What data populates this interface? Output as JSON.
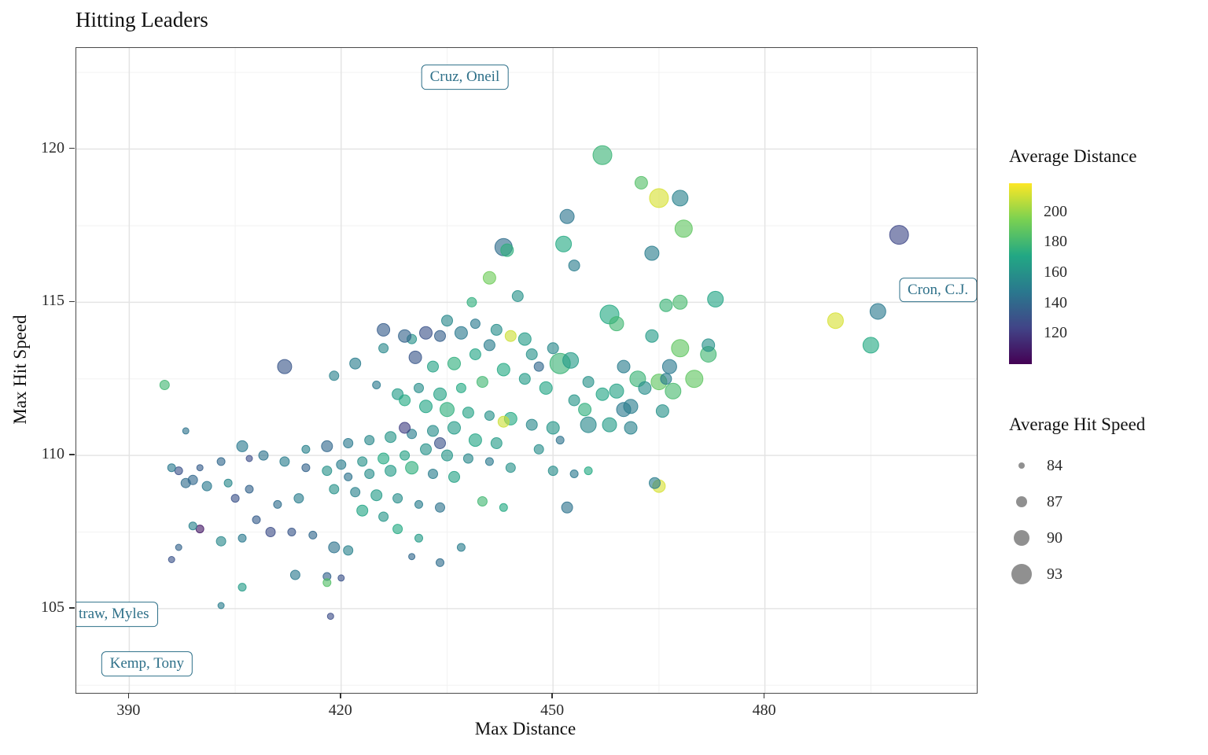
{
  "chart_data": {
    "type": "scatter",
    "title": "Hitting Leaders",
    "xlabel": "Max Distance",
    "ylabel": "Max Hit Speed",
    "x_ticks": [
      390,
      420,
      450,
      480
    ],
    "y_ticks": [
      105,
      110,
      115,
      120
    ],
    "x_range": [
      382.5,
      510
    ],
    "y_range": [
      102.25,
      123.3
    ],
    "grid": "major+minor",
    "legend_position": "right",
    "color_legend": {
      "title": "Average Distance",
      "ticks": [
        200,
        180,
        160,
        140,
        120
      ],
      "domain": [
        100,
        219
      ],
      "palette": [
        "#440154",
        "#414487",
        "#2a788e",
        "#22a884",
        "#7ad151",
        "#fde725"
      ]
    },
    "size_legend": {
      "title": "Average Hit Speed",
      "ticks": [
        84,
        87,
        90,
        93
      ]
    },
    "annotations": [
      {
        "text": "Cruz, Oneil",
        "x": 437.5,
        "y": 122.35
      },
      {
        "text": "Cron, C.J.",
        "x": 504.5,
        "y": 115.4
      },
      {
        "text": "traw, Myles",
        "x": 385.8,
        "y": 104.82,
        "clip": "left"
      },
      {
        "text": "Kemp, Tony",
        "x": 392.5,
        "y": 103.2
      }
    ],
    "series_encoding": {
      "x": "Max Distance",
      "y": "Max Hit Speed",
      "color": "Average Distance",
      "size": "Average Hit Speed",
      "point_fields": [
        "max_distance",
        "max_hit_speed",
        "avg_distance",
        "avg_hit_speed"
      ]
    },
    "points": [
      [
        457,
        119.8,
        178,
        92
      ],
      [
        462.5,
        118.9,
        185,
        88
      ],
      [
        465,
        118.4,
        212,
        92
      ],
      [
        468,
        118.4,
        152,
        90
      ],
      [
        468.5,
        117.4,
        188,
        91
      ],
      [
        499,
        117.2,
        126,
        92
      ],
      [
        452,
        117.8,
        146,
        89
      ],
      [
        443,
        116.8,
        142,
        91
      ],
      [
        443.5,
        116.7,
        175,
        88
      ],
      [
        451.5,
        116.9,
        172,
        90
      ],
      [
        464,
        116.6,
        150,
        89
      ],
      [
        453,
        116.2,
        150,
        87
      ],
      [
        441,
        115.8,
        192,
        88
      ],
      [
        473,
        115.1,
        170,
        90
      ],
      [
        496,
        114.7,
        148,
        90
      ],
      [
        490,
        114.4,
        212,
        90
      ],
      [
        495,
        113.6,
        172,
        90
      ],
      [
        468,
        115,
        182,
        89
      ],
      [
        445,
        115.2,
        160,
        87
      ],
      [
        438.5,
        115,
        175,
        86
      ],
      [
        458,
        114.6,
        172,
        92
      ],
      [
        459,
        114.3,
        180,
        89
      ],
      [
        464,
        113.9,
        165,
        88
      ],
      [
        468,
        113.5,
        188,
        91
      ],
      [
        444,
        113.9,
        210,
        87
      ],
      [
        460,
        112.9,
        150,
        88
      ],
      [
        451,
        113,
        178,
        93
      ],
      [
        452.5,
        113.1,
        165,
        90
      ],
      [
        447,
        113.3,
        160,
        87
      ],
      [
        441,
        113.6,
        150,
        87
      ],
      [
        437,
        114,
        148,
        88
      ],
      [
        434,
        113.9,
        136,
        87
      ],
      [
        430,
        113.8,
        160,
        86
      ],
      [
        426,
        113.5,
        155,
        86
      ],
      [
        426,
        114.1,
        135,
        88
      ],
      [
        439,
        113.3,
        170,
        87
      ],
      [
        436,
        113,
        175,
        88
      ],
      [
        433,
        112.9,
        168,
        87
      ],
      [
        412,
        112.9,
        132,
        89
      ],
      [
        422,
        113,
        150,
        87
      ],
      [
        419,
        112.6,
        152,
        86
      ],
      [
        443,
        112.8,
        172,
        88
      ],
      [
        446,
        112.5,
        165,
        87
      ],
      [
        449,
        112.2,
        170,
        88
      ],
      [
        455,
        112.4,
        160,
        87
      ],
      [
        462,
        112.5,
        178,
        90
      ],
      [
        465,
        112.4,
        188,
        90
      ],
      [
        457,
        112,
        170,
        88
      ],
      [
        453,
        111.8,
        162,
        87
      ],
      [
        460,
        111.5,
        148,
        89
      ],
      [
        466,
        112.5,
        150,
        87
      ],
      [
        467,
        112.1,
        182,
        90
      ],
      [
        440,
        112.4,
        180,
        87
      ],
      [
        437,
        112.2,
        172,
        86
      ],
      [
        434,
        112,
        168,
        88
      ],
      [
        431,
        112.2,
        158,
        86
      ],
      [
        428,
        112,
        165,
        87
      ],
      [
        425,
        112.3,
        148,
        85
      ],
      [
        429,
        111.8,
        172,
        87
      ],
      [
        432,
        111.6,
        170,
        88
      ],
      [
        435,
        111.5,
        175,
        89
      ],
      [
        438,
        111.4,
        168,
        87
      ],
      [
        441,
        111.3,
        160,
        86
      ],
      [
        444,
        111.2,
        172,
        88
      ],
      [
        447,
        111,
        155,
        87
      ],
      [
        450,
        110.9,
        162,
        88
      ],
      [
        443,
        111.1,
        210,
        87
      ],
      [
        436,
        110.9,
        165,
        88
      ],
      [
        433,
        110.8,
        158,
        87
      ],
      [
        430,
        110.7,
        150,
        86
      ],
      [
        427,
        110.6,
        162,
        87
      ],
      [
        424,
        110.5,
        155,
        86
      ],
      [
        421,
        110.4,
        148,
        86
      ],
      [
        418,
        110.3,
        140,
        87
      ],
      [
        415,
        110.2,
        152,
        85
      ],
      [
        439,
        110.5,
        170,
        88
      ],
      [
        442,
        110.4,
        165,
        87
      ],
      [
        448,
        110.2,
        158,
        86
      ],
      [
        451,
        110.5,
        145,
        85
      ],
      [
        455,
        111,
        155,
        90
      ],
      [
        454.5,
        111.5,
        175,
        88
      ],
      [
        461,
        111.6,
        150,
        89
      ],
      [
        463,
        112.2,
        158,
        88
      ],
      [
        465.5,
        111.45,
        160,
        88
      ],
      [
        432,
        110.2,
        160,
        87
      ],
      [
        429,
        110,
        168,
        86
      ],
      [
        426,
        109.9,
        172,
        87
      ],
      [
        423,
        109.8,
        160,
        86
      ],
      [
        420,
        109.7,
        150,
        86
      ],
      [
        435,
        110,
        162,
        87
      ],
      [
        438,
        109.9,
        155,
        86
      ],
      [
        441,
        109.8,
        148,
        85
      ],
      [
        444,
        109.6,
        160,
        86
      ],
      [
        430,
        109.6,
        175,
        88
      ],
      [
        427,
        109.5,
        165,
        87
      ],
      [
        424,
        109.4,
        158,
        86
      ],
      [
        433,
        109.4,
        150,
        86
      ],
      [
        436,
        109.3,
        168,
        87
      ],
      [
        421,
        109.3,
        145,
        85
      ],
      [
        418,
        109.5,
        160,
        86
      ],
      [
        415,
        109.6,
        138,
        85
      ],
      [
        412,
        109.8,
        150,
        86
      ],
      [
        409,
        110,
        145,
        86
      ],
      [
        406,
        110.3,
        148,
        87
      ],
      [
        403,
        109.8,
        140,
        85
      ],
      [
        400,
        109.6,
        135,
        84
      ],
      [
        397,
        109.5,
        130,
        85
      ],
      [
        398,
        109.1,
        142,
        86
      ],
      [
        401,
        109,
        148,
        86
      ],
      [
        404,
        109.1,
        155,
        85
      ],
      [
        407,
        108.9,
        138,
        85
      ],
      [
        419,
        108.9,
        160,
        86
      ],
      [
        422,
        108.8,
        152,
        86
      ],
      [
        425,
        108.7,
        165,
        87
      ],
      [
        428,
        108.6,
        158,
        86
      ],
      [
        431,
        108.4,
        150,
        85
      ],
      [
        434,
        108.3,
        145,
        86
      ],
      [
        423,
        108.2,
        170,
        87
      ],
      [
        426,
        108,
        162,
        86
      ],
      [
        440,
        108.5,
        180,
        86
      ],
      [
        443,
        108.3,
        172,
        85
      ],
      [
        452,
        108.3,
        145,
        87
      ],
      [
        450,
        109.5,
        158,
        86
      ],
      [
        453,
        109.4,
        148,
        85
      ],
      [
        465,
        109,
        212,
        88
      ],
      [
        464.4,
        109.1,
        150,
        87
      ],
      [
        458,
        111,
        165,
        89
      ],
      [
        414,
        108.6,
        150,
        86
      ],
      [
        411,
        108.4,
        142,
        85
      ],
      [
        408,
        107.9,
        135,
        85
      ],
      [
        410,
        107.5,
        128,
        86
      ],
      [
        413,
        107.5,
        132,
        85
      ],
      [
        416,
        107.4,
        140,
        85
      ],
      [
        400,
        107.6,
        108,
        85
      ],
      [
        399,
        107.7,
        152,
        85
      ],
      [
        403,
        107.2,
        155,
        86
      ],
      [
        406,
        107.3,
        148,
        85
      ],
      [
        397,
        107,
        138,
        84
      ],
      [
        419,
        107,
        145,
        87
      ],
      [
        421,
        106.9,
        152,
        86
      ],
      [
        430,
        106.7,
        140,
        84
      ],
      [
        434,
        106.5,
        142,
        85
      ],
      [
        420,
        106,
        130,
        84
      ],
      [
        418,
        106.05,
        138,
        85
      ],
      [
        413.5,
        106.1,
        148,
        86
      ],
      [
        406,
        105.7,
        165,
        85
      ],
      [
        418,
        105.85,
        185,
        85
      ],
      [
        403,
        105.1,
        150,
        84
      ],
      [
        418.5,
        104.75,
        128,
        84
      ],
      [
        396,
        106.6,
        130,
        84
      ],
      [
        395,
        112.3,
        180,
        86
      ],
      [
        398,
        110.8,
        145,
        84
      ],
      [
        396,
        109.6,
        148,
        85
      ],
      [
        399,
        109.2,
        140,
        86
      ],
      [
        428,
        107.6,
        172,
        86
      ],
      [
        431,
        107.3,
        165,
        85
      ],
      [
        437,
        107,
        150,
        85
      ],
      [
        455,
        109.5,
        172,
        85
      ],
      [
        470,
        112.5,
        188,
        91
      ],
      [
        472,
        113.3,
        180,
        90
      ],
      [
        466,
        114.9,
        178,
        88
      ],
      [
        448,
        112.9,
        140,
        86
      ],
      [
        450,
        113.5,
        155,
        87
      ],
      [
        446,
        113.8,
        165,
        88
      ],
      [
        442,
        114.1,
        158,
        87
      ],
      [
        439,
        114.3,
        148,
        86
      ],
      [
        435,
        114.4,
        155,
        87
      ],
      [
        432,
        114,
        130,
        88
      ],
      [
        429,
        113.9,
        138,
        88
      ],
      [
        461,
        110.9,
        152,
        88
      ],
      [
        459,
        112.1,
        168,
        89
      ],
      [
        430.5,
        113.2,
        132,
        88
      ],
      [
        466.5,
        112.9,
        148,
        89
      ],
      [
        472,
        113.6,
        160,
        88
      ],
      [
        429,
        110.9,
        122,
        87
      ],
      [
        434,
        110.4,
        130,
        87
      ],
      [
        405,
        108.6,
        130,
        85
      ],
      [
        407,
        109.9,
        128,
        84
      ]
    ]
  },
  "colors": {
    "grid_major": "#e4e4e4",
    "grid_minor": "#f2f2f2",
    "panel_border": "#4a4a4a",
    "axis_text": "#2b2b2b",
    "annotation": "#2e7089",
    "legend_dot": "#7c7c7c",
    "background": "#ffffff"
  }
}
